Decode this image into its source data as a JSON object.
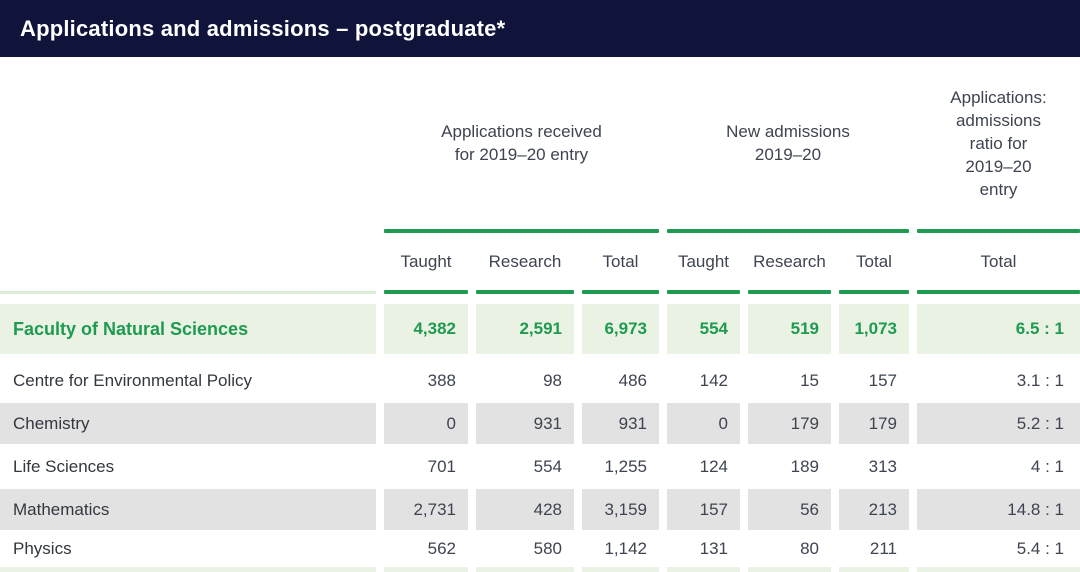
{
  "title": "Applications and admissions – postgraduate*",
  "colors": {
    "titlebar_bg": "#10143a",
    "title_text": "#ffffff",
    "accent_green": "#1e9b50",
    "highlight_row_bg": "#eaf2e4",
    "zebra_gray_bg": "#e2e2e2",
    "body_text": "#3e4450",
    "light_green_rule": "#dcedd8"
  },
  "table": {
    "groups": [
      {
        "label": "Applications received\nfor 2019–20 entry"
      },
      {
        "label": "New admissions\n2019–20"
      },
      {
        "label": "Applications:\nadmissions\nratio for\n2019–20\nentry"
      }
    ],
    "subheaders": [
      "Taught",
      "Research",
      "Total",
      "Taught",
      "Research",
      "Total",
      "Total"
    ],
    "rows": [
      {
        "label": "Faculty of Natural Sciences",
        "values": [
          "4,382",
          "2,591",
          "6,973",
          "554",
          "519",
          "1,073",
          "6.5 : 1"
        ]
      },
      {
        "label": "Centre for Environmental Policy",
        "values": [
          "388",
          "98",
          "486",
          "142",
          "15",
          "157",
          "3.1 : 1"
        ]
      },
      {
        "label": "Chemistry",
        "values": [
          "0",
          "931",
          "931",
          "0",
          "179",
          "179",
          "5.2 : 1"
        ]
      },
      {
        "label": "Life Sciences",
        "values": [
          "701",
          "554",
          "1,255",
          "124",
          "189",
          "313",
          "4 : 1"
        ]
      },
      {
        "label": "Mathematics",
        "values": [
          "2,731",
          "428",
          "3,159",
          "157",
          "56",
          "213",
          "14.8 : 1"
        ]
      },
      {
        "label": "Physics",
        "values": [
          "562",
          "580",
          "1,142",
          "131",
          "80",
          "211",
          "5.4 : 1"
        ]
      }
    ]
  },
  "chart_data": {
    "type": "table",
    "title": "Applications and admissions – postgraduate*",
    "column_groups": [
      "Applications received for 2019–20 entry",
      "New admissions 2019–20",
      "Applications: admissions ratio for 2019–20 entry"
    ],
    "columns": [
      "Taught",
      "Research",
      "Total",
      "Taught",
      "Research",
      "Total",
      "Total"
    ],
    "rows": [
      [
        "Faculty of Natural Sciences",
        "4,382",
        "2,591",
        "6,973",
        "554",
        "519",
        "1,073",
        "6.5 : 1"
      ],
      [
        "Centre for Environmental Policy",
        "388",
        "98",
        "486",
        "142",
        "15",
        "157",
        "3.1 : 1"
      ],
      [
        "Chemistry",
        "0",
        "931",
        "931",
        "0",
        "179",
        "179",
        "5.2 : 1"
      ],
      [
        "Life Sciences",
        "701",
        "554",
        "1,255",
        "124",
        "189",
        "313",
        "4 : 1"
      ],
      [
        "Mathematics",
        "2,731",
        "428",
        "3,159",
        "157",
        "56",
        "213",
        "14.8 : 1"
      ],
      [
        "Physics",
        "562",
        "580",
        "1,142",
        "131",
        "80",
        "211",
        "5.4 : 1"
      ]
    ]
  }
}
